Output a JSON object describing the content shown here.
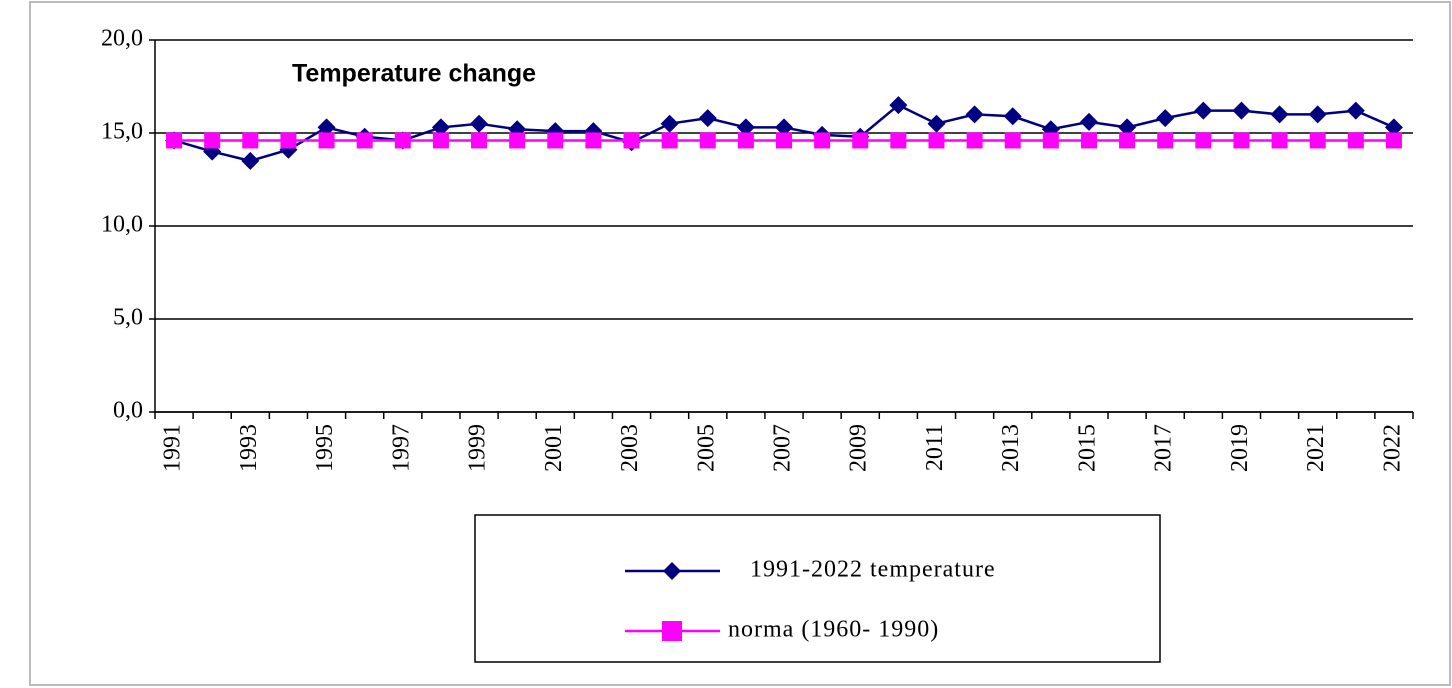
{
  "chart_data": {
    "type": "line",
    "title": "Temperature change",
    "categories": [
      "1991",
      null,
      "1993",
      null,
      "1995",
      null,
      "1997",
      null,
      "1999",
      null,
      "2001",
      null,
      "2003",
      null,
      "2005",
      null,
      "2007",
      null,
      "2009",
      null,
      "2011",
      null,
      "2013",
      null,
      "2015",
      null,
      "2017",
      null,
      "2019",
      null,
      "2021",
      null,
      "2022"
    ],
    "series": [
      {
        "name": "1991-2022 temperature",
        "color": "#000080",
        "marker": "diamond",
        "values": [
          14.6,
          14.0,
          13.5,
          14.1,
          15.3,
          14.8,
          14.6,
          15.3,
          15.5,
          15.2,
          15.1,
          15.1,
          14.5,
          15.5,
          15.8,
          15.3,
          15.3,
          14.9,
          14.8,
          16.5,
          15.5,
          16.0,
          15.9,
          15.2,
          15.6,
          15.3,
          15.8,
          16.2,
          16.2,
          16.0,
          16.0,
          16.2,
          15.3
        ]
      },
      {
        "name": "norma (1960- 1990)",
        "color": "#ff00ff",
        "marker": "square",
        "values": [
          14.6,
          14.6,
          14.6,
          14.6,
          14.6,
          14.6,
          14.6,
          14.6,
          14.6,
          14.6,
          14.6,
          14.6,
          14.6,
          14.6,
          14.6,
          14.6,
          14.6,
          14.6,
          14.6,
          14.6,
          14.6,
          14.6,
          14.6,
          14.6,
          14.6,
          14.6,
          14.6,
          14.6,
          14.6,
          14.6,
          14.6,
          14.6,
          14.6
        ]
      }
    ],
    "ylim": [
      0,
      20
    ],
    "yticks": [
      {
        "value": 0,
        "label": "0,0"
      },
      {
        "value": 5,
        "label": "5,0"
      },
      {
        "value": 10,
        "label": "10,0"
      },
      {
        "value": 15,
        "label": "15,0"
      },
      {
        "value": 20,
        "label": "20,0"
      }
    ],
    "grid": true,
    "legend": "bottom"
  }
}
